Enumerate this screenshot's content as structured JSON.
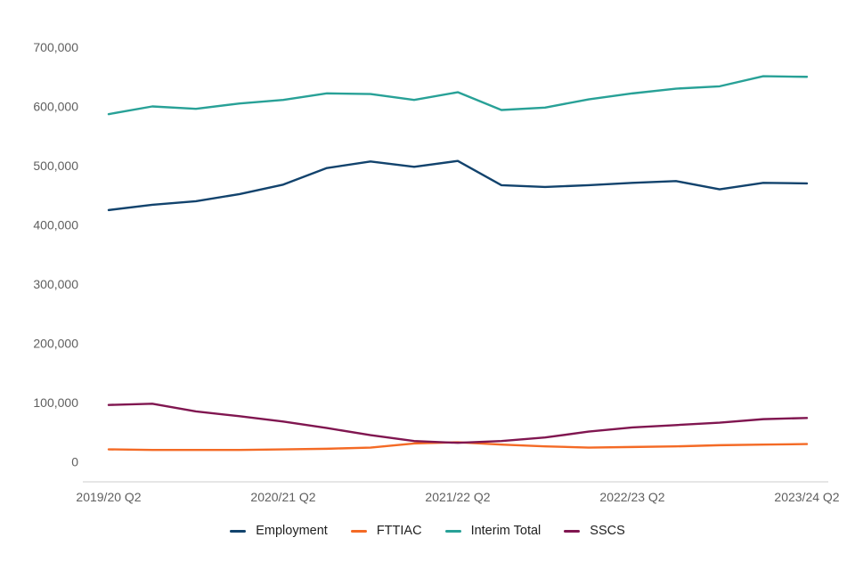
{
  "chart_data": {
    "type": "line",
    "title": "",
    "xlabel": "",
    "ylabel": "",
    "ylim": [
      0,
      700000
    ],
    "grid": false,
    "legend_position": "bottom",
    "y_tick_labels": [
      "700,000",
      "600,000",
      "500,000",
      "400,000",
      "300,000",
      "200,000",
      "100,000",
      "0"
    ],
    "y_tick_values": [
      700000,
      600000,
      500000,
      400000,
      300000,
      200000,
      100000,
      0
    ],
    "x_tick_labels": [
      "2019/20 Q2",
      "2020/21 Q2",
      "2021/22 Q2",
      "2022/23 Q2",
      "2023/24 Q2"
    ],
    "x_tick_indices": [
      0,
      4,
      8,
      12,
      16
    ],
    "categories": [
      "2019/20 Q2",
      "2019/20 Q3",
      "2019/20 Q4",
      "2020/21 Q1",
      "2020/21 Q2",
      "2020/21 Q3",
      "2020/21 Q4",
      "2021/22 Q1",
      "2021/22 Q2",
      "2021/22 Q3",
      "2021/22 Q4",
      "2022/23 Q1",
      "2022/23 Q2",
      "2022/23 Q3",
      "2022/23 Q4",
      "2023/24 Q1",
      "2023/24 Q2"
    ],
    "series": [
      {
        "name": "Employment",
        "color": "#12436D",
        "values": [
          425000,
          434000,
          440000,
          452000,
          468000,
          496000,
          507000,
          498000,
          508000,
          467000,
          464000,
          467000,
          471000,
          474000,
          460000,
          471000,
          470000
        ]
      },
      {
        "name": "FTTIAC",
        "color": "#F46A25",
        "values": [
          21000,
          20000,
          20000,
          20000,
          21000,
          22000,
          24000,
          31000,
          33000,
          29000,
          26000,
          24000,
          25000,
          26000,
          28000,
          29000,
          30000
        ]
      },
      {
        "name": "Interim Total",
        "color": "#28A197",
        "values": [
          587000,
          600000,
          596000,
          605000,
          611000,
          622000,
          621000,
          611000,
          624000,
          594000,
          598000,
          612000,
          622000,
          630000,
          634000,
          651000,
          650000
        ]
      },
      {
        "name": "SSCS",
        "color": "#801650",
        "values": [
          96000,
          98000,
          85000,
          77000,
          68000,
          57000,
          45000,
          35000,
          32000,
          35000,
          41000,
          51000,
          58000,
          62000,
          66000,
          72000,
          74000
        ]
      }
    ]
  }
}
